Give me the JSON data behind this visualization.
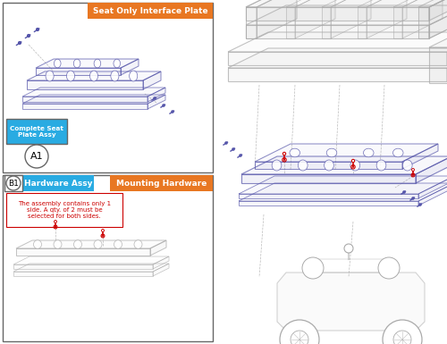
{
  "bg_color": "#ffffff",
  "box1_label": "Seat Only Interface Plate",
  "box1_label_bg": "#E87722",
  "box1_label_color": "#ffffff",
  "box1_sublabel": "Complete Seat\nPlate Assy",
  "box1_sublabel_bg": "#29ABE2",
  "box1_sublabel_color": "#ffffff",
  "box1_partnum": "A1",
  "box2_label": "Mounting Hardware",
  "box2_label_bg": "#E87722",
  "box2_label_color": "#ffffff",
  "box2_sublabel": "Hardware Assy",
  "box2_sublabel_bg": "#29ABE2",
  "box2_sublabel_color": "#ffffff",
  "box2_partnum": "B1",
  "box2_note": "The assembly contains only 1\nside. A qty. of 2 must be\nselected for both sides.",
  "box2_note_color": "#cc0000",
  "part_color": "#5555aa",
  "screw_color": "#cc0000",
  "frame_color": "#aaaaaa",
  "line_color": "#bbbbbb",
  "border_color": "#666666",
  "gray_part": "#aaaaaa"
}
